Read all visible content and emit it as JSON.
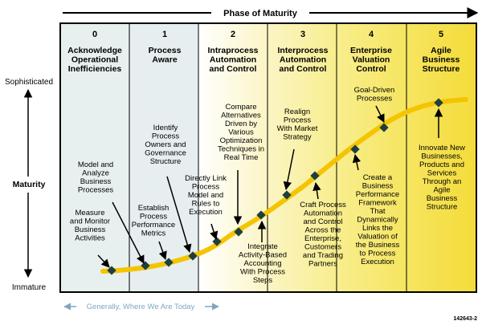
{
  "header": {
    "title": "Phase of Maturity"
  },
  "y_axis": {
    "label": "Maturity",
    "top": "Sophisticated",
    "bottom": "Immature"
  },
  "stages": [
    {
      "num": "0",
      "title": [
        "Acknowledge",
        "Operational",
        "Inefficiencies"
      ]
    },
    {
      "num": "1",
      "title": [
        "Process",
        "Aware"
      ]
    },
    {
      "num": "2",
      "title": [
        "Intraprocess",
        "Automation",
        "and Control"
      ]
    },
    {
      "num": "3",
      "title": [
        "Interprocess",
        "Automation",
        "and Control"
      ]
    },
    {
      "num": "4",
      "title": [
        "Enterprise",
        "Valuation",
        "Control"
      ]
    },
    {
      "num": "5",
      "title": [
        "Agile",
        "Business",
        "Structure"
      ]
    }
  ],
  "annotations": [
    {
      "id": "measure",
      "lines": [
        "Measure",
        "and Monitor",
        "Business",
        "Activities"
      ]
    },
    {
      "id": "model",
      "lines": [
        "Model and",
        "Analyze",
        "Business",
        "Processes"
      ]
    },
    {
      "id": "establish",
      "lines": [
        "Establish",
        "Process",
        "Performance",
        "Metrics"
      ]
    },
    {
      "id": "identify",
      "lines": [
        "Identify",
        "Process",
        "Owners and",
        "Governance",
        "Structure"
      ]
    },
    {
      "id": "directly",
      "lines": [
        "Directly Link",
        "Process",
        "Model and",
        "Rules to",
        "Execution"
      ]
    },
    {
      "id": "compare",
      "lines": [
        "Compare",
        "Alternatives",
        "Driven by",
        "Various",
        "Optimization",
        "Techniques in",
        "Real Time"
      ]
    },
    {
      "id": "integrate",
      "lines": [
        "Integrate",
        "Activity-Based",
        "Accounting",
        "With Process",
        "Steps"
      ]
    },
    {
      "id": "realign",
      "lines": [
        "Realign",
        "Process",
        "With Market",
        "Strategy"
      ]
    },
    {
      "id": "craft",
      "lines": [
        "Craft Process",
        "Automation",
        "and Control",
        "Across the",
        "Enterprise,",
        "Customers",
        "and Trading",
        "Partners"
      ]
    },
    {
      "id": "create",
      "lines": [
        "Create a",
        "Business",
        "Performance",
        "Framework",
        "That",
        "Dynamically",
        "Links the",
        "Valuation of",
        "the Business",
        "to Process",
        "Execution"
      ]
    },
    {
      "id": "goal",
      "lines": [
        "Goal-Driven",
        "Processes"
      ]
    },
    {
      "id": "innovate",
      "lines": [
        "Innovate New",
        "Businesses,",
        "Products and",
        "Services",
        "Through an",
        "Agile",
        "Business",
        "Structure"
      ]
    }
  ],
  "footer": {
    "note": "Generally, Where We Are Today",
    "code": "142643-2"
  },
  "colors": {
    "curve": "#f5c400",
    "marker": "#1f3f3f",
    "frame": "#000000",
    "note": "#7fa7bf"
  }
}
